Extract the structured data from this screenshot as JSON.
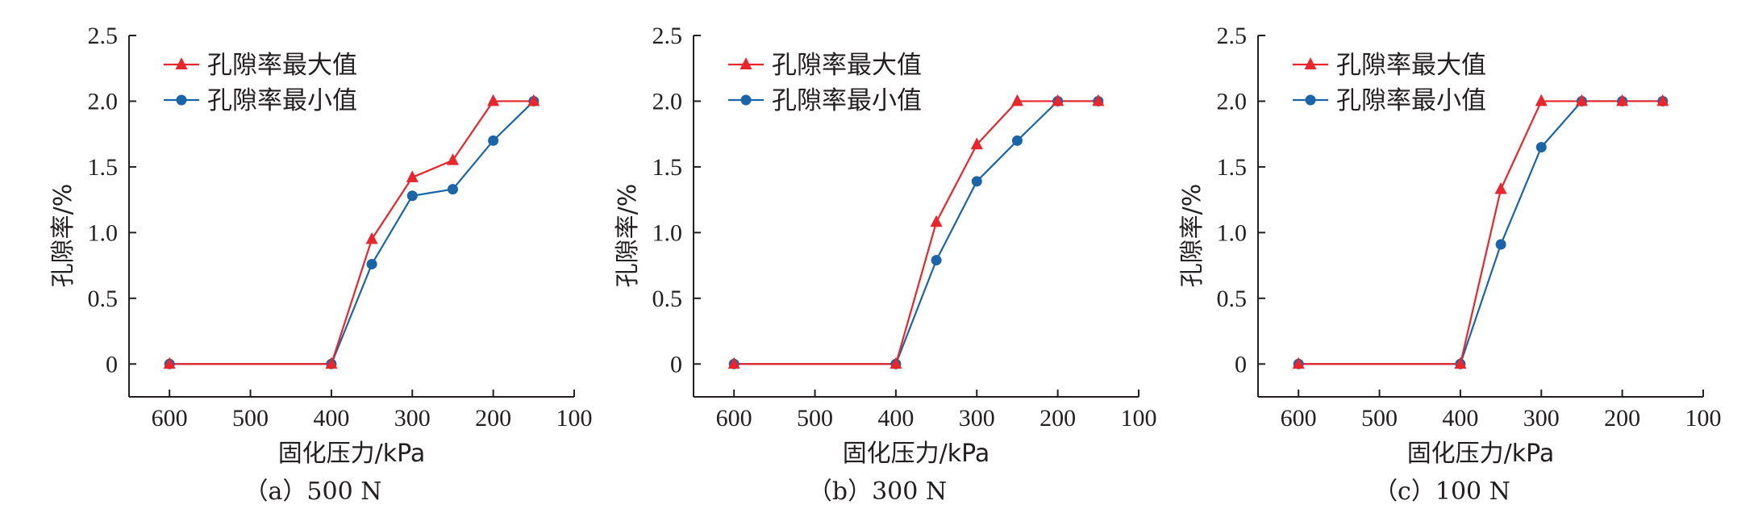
{
  "chart_data": [
    {
      "type": "line",
      "title": "",
      "caption": "（a）500 N",
      "xlabel": "固化压力/kPa",
      "ylabel": "孔隙率/%",
      "xlim": [
        650,
        100
      ],
      "ylim": [
        -0.25,
        2.5
      ],
      "x_ticks": [
        600,
        500,
        400,
        300,
        200,
        100
      ],
      "y_ticks": [
        0,
        0.5,
        1.0,
        1.5,
        2.0,
        2.5
      ],
      "y_tick_labels": [
        "0",
        "0.5",
        "1.0",
        "1.5",
        "2.0",
        "2.5"
      ],
      "legend_position": "top-left",
      "grid": false,
      "series": [
        {
          "name": "孔隙率最大值",
          "marker": "triangle",
          "color": "#e8262b",
          "x": [
            600,
            400,
            350,
            300,
            250,
            200,
            150
          ],
          "y": [
            0,
            0,
            0.95,
            1.42,
            1.55,
            2.0,
            2.0
          ]
        },
        {
          "name": "孔隙率最小值",
          "marker": "circle",
          "color": "#1a64a8",
          "x": [
            600,
            400,
            350,
            300,
            250,
            200,
            150
          ],
          "y": [
            0,
            0,
            0.76,
            1.28,
            1.33,
            1.7,
            2.0
          ]
        }
      ]
    },
    {
      "type": "line",
      "title": "",
      "caption": "（b）300 N",
      "xlabel": "固化压力/kPa",
      "ylabel": "孔隙率/%",
      "xlim": [
        650,
        100
      ],
      "ylim": [
        -0.25,
        2.5
      ],
      "x_ticks": [
        600,
        500,
        400,
        300,
        200,
        100
      ],
      "y_ticks": [
        0,
        0.5,
        1.0,
        1.5,
        2.0,
        2.5
      ],
      "y_tick_labels": [
        "0",
        "0.5",
        "1.0",
        "1.5",
        "2.0",
        "2.5"
      ],
      "legend_position": "top-left",
      "grid": false,
      "series": [
        {
          "name": "孔隙率最大值",
          "marker": "triangle",
          "color": "#e8262b",
          "x": [
            600,
            400,
            350,
            300,
            250,
            200,
            150
          ],
          "y": [
            0,
            0,
            1.08,
            1.67,
            2.0,
            2.0,
            2.0
          ]
        },
        {
          "name": "孔隙率最小值",
          "marker": "circle",
          "color": "#1a64a8",
          "x": [
            600,
            400,
            350,
            300,
            250,
            200,
            150
          ],
          "y": [
            0,
            0,
            0.79,
            1.39,
            1.7,
            2.0,
            2.0
          ]
        }
      ]
    },
    {
      "type": "line",
      "title": "",
      "caption": "（c）100 N",
      "xlabel": "固化压力/kPa",
      "ylabel": "孔隙率/%",
      "xlim": [
        650,
        100
      ],
      "ylim": [
        -0.25,
        2.5
      ],
      "x_ticks": [
        600,
        500,
        400,
        300,
        200,
        100
      ],
      "y_ticks": [
        0,
        0.5,
        1.0,
        1.5,
        2.0,
        2.5
      ],
      "y_tick_labels": [
        "0",
        "0.5",
        "1.0",
        "1.5",
        "2.0",
        "2.5"
      ],
      "legend_position": "top-left",
      "grid": false,
      "series": [
        {
          "name": "孔隙率最大值",
          "marker": "triangle",
          "color": "#e8262b",
          "x": [
            600,
            400,
            350,
            300,
            250,
            200,
            150
          ],
          "y": [
            0,
            0,
            1.33,
            2.0,
            2.0,
            2.0,
            2.0
          ]
        },
        {
          "name": "孔隙率最小值",
          "marker": "circle",
          "color": "#1a64a8",
          "x": [
            600,
            400,
            350,
            300,
            250,
            200,
            150
          ],
          "y": [
            0,
            0,
            0.91,
            1.65,
            2.0,
            2.0,
            2.0
          ]
        }
      ]
    }
  ]
}
